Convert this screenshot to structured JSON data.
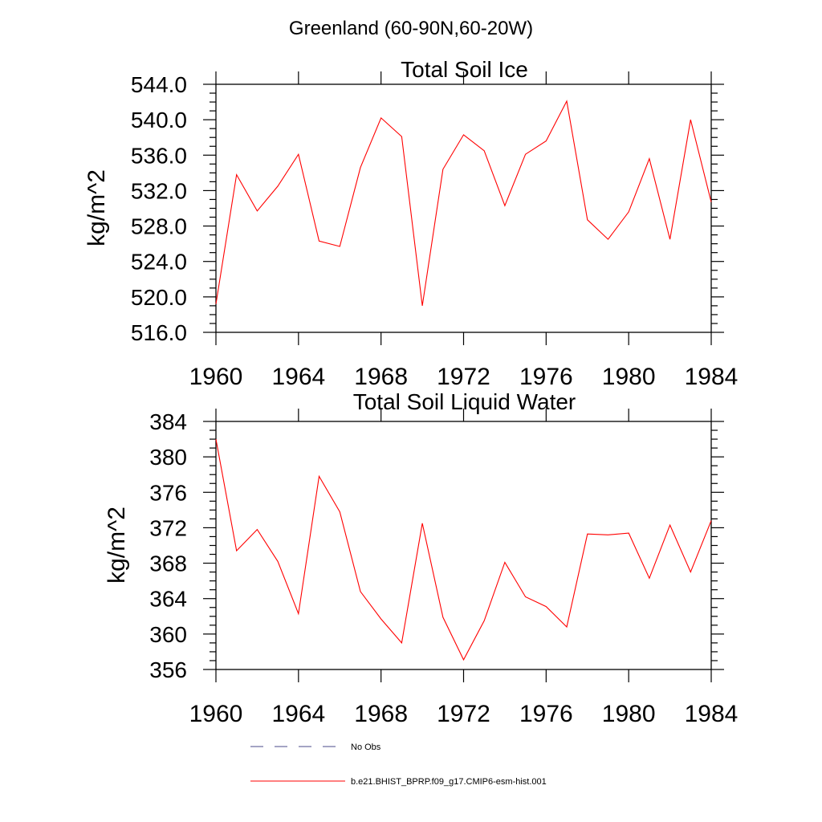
{
  "suptitle": "Greenland (60-90N,60-20W)",
  "chart_data": [
    {
      "type": "line",
      "title": "Total Soil Ice",
      "ylabel": "kg/m^2",
      "xlabel": "",
      "xlim": [
        1960,
        1984
      ],
      "ylim": [
        516,
        544
      ],
      "xticks": [
        1960,
        1964,
        1968,
        1972,
        1976,
        1980,
        1984
      ],
      "xtick_labels": [
        "1960",
        "1964",
        "1968",
        "1972",
        "1976",
        "1980",
        "1984"
      ],
      "yticks": [
        516,
        520,
        524,
        528,
        532,
        536,
        540,
        544
      ],
      "ytick_labels": [
        "516.0",
        "520.0",
        "524.0",
        "528.0",
        "532.0",
        "536.0",
        "540.0",
        "544.0"
      ],
      "series": [
        {
          "name": "b.e21.BHIST_BPRP.f09_g17.CMIP6-esm-hist.001",
          "color": "#ff0000",
          "x": [
            1960,
            1961,
            1962,
            1963,
            1964,
            1965,
            1966,
            1967,
            1968,
            1969,
            1970,
            1971,
            1972,
            1973,
            1974,
            1975,
            1976,
            1977,
            1978,
            1979,
            1980,
            1981,
            1982,
            1983,
            1984
          ],
          "y": [
            519.2,
            533.8,
            529.7,
            532.5,
            536.1,
            526.3,
            525.7,
            534.6,
            540.2,
            538.1,
            519.0,
            534.4,
            538.3,
            536.5,
            530.3,
            536.1,
            537.6,
            542.1,
            528.7,
            526.5,
            529.6,
            535.6,
            526.5,
            540.0,
            530.7
          ]
        }
      ]
    },
    {
      "type": "line",
      "title": "Total Soil Liquid Water",
      "ylabel": "kg/m^2",
      "xlabel": "",
      "xlim": [
        1960,
        1984
      ],
      "ylim": [
        356,
        384
      ],
      "xticks": [
        1960,
        1964,
        1968,
        1972,
        1976,
        1980,
        1984
      ],
      "xtick_labels": [
        "1960",
        "1964",
        "1968",
        "1972",
        "1976",
        "1980",
        "1984"
      ],
      "yticks": [
        356,
        360,
        364,
        368,
        372,
        376,
        380,
        384
      ],
      "ytick_labels": [
        "356",
        "360",
        "364",
        "368",
        "372",
        "376",
        "380",
        "384"
      ],
      "series": [
        {
          "name": "b.e21.BHIST_BPRP.f09_g17.CMIP6-esm-hist.001",
          "color": "#ff0000",
          "x": [
            1960,
            1961,
            1962,
            1963,
            1964,
            1965,
            1966,
            1967,
            1968,
            1969,
            1970,
            1971,
            1972,
            1973,
            1974,
            1975,
            1976,
            1977,
            1978,
            1979,
            1980,
            1981,
            1982,
            1983,
            1984
          ],
          "y": [
            382.0,
            369.4,
            371.8,
            368.2,
            362.3,
            377.8,
            373.8,
            364.8,
            361.7,
            359.0,
            372.5,
            361.9,
            357.1,
            361.5,
            368.1,
            364.2,
            363.1,
            360.8,
            371.3,
            371.2,
            371.4,
            366.3,
            372.3,
            367.0,
            372.8
          ]
        }
      ]
    }
  ],
  "legend": [
    {
      "label": "No Obs",
      "color": "#4a4a8a",
      "style": "dashed"
    },
    {
      "label": "b.e21.BHIST_BPRP.f09_g17.CMIP6-esm-hist.001",
      "color": "#ff0000",
      "style": "solid"
    }
  ]
}
